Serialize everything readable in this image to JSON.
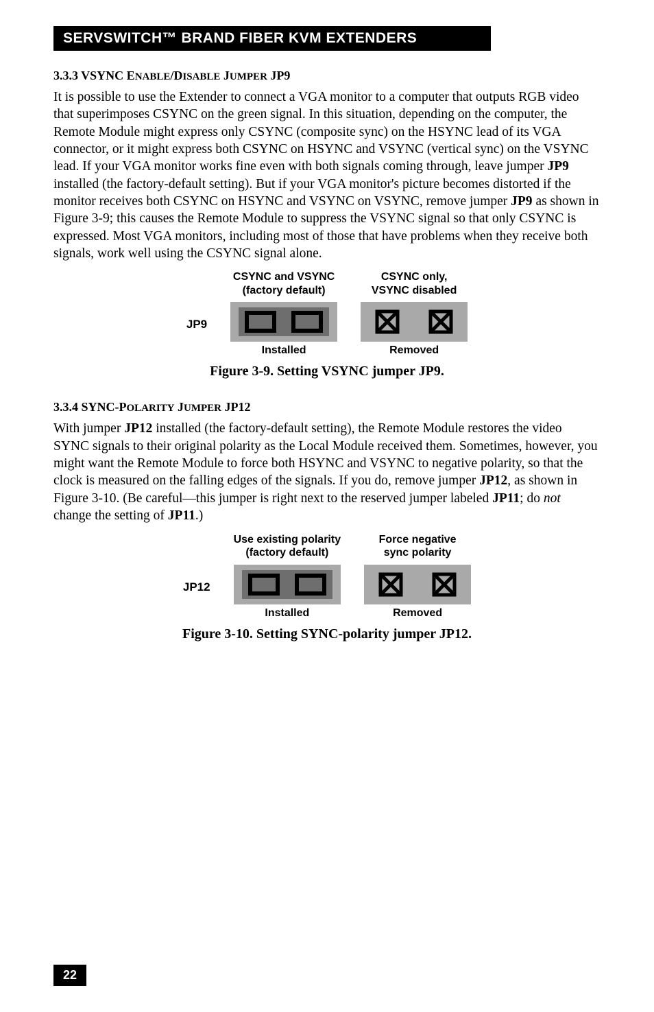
{
  "header": "SERVSWITCH™ BRAND FIBER KVM EXTENDERS",
  "section1": {
    "heading_num": "3.3.3 VSYNC E",
    "heading_mid1": "NABLE",
    "heading_slash": "/D",
    "heading_mid2": "ISABLE",
    "heading_j": " J",
    "heading_mid3": "UMPER",
    "heading_end": " JP9",
    "body": "It is possible to use the Extender to connect a VGA monitor to a computer that outputs RGB video that superimposes CSYNC on the green signal. In this situation, depending on the computer, the Remote Module might express only CSYNC (composite sync) on the HSYNC lead of its VGA connector, or it might express both CSYNC on HSYNC and VSYNC (vertical sync) on the VSYNC lead. If your VGA monitor works fine even with both signals coming through, leave jumper ",
    "jp9a": "JP9",
    "body2": " installed (the factory-default setting). But if your VGA monitor's picture becomes distorted if the monitor receives both CSYNC on HSYNC and VSYNC on VSYNC, remove jumper ",
    "jp9b": "JP9",
    "body3": " as shown in Figure 3-9; this causes the Remote Module to suppress the VSYNC signal so that only CSYNC is expressed. Most VGA monitors, including most of those that have problems when they receive both signals, work well using the CSYNC signal alone."
  },
  "figure1": {
    "jumper_name": "JP9",
    "left_top": "CSYNC and VSYNC\n(factory default)",
    "right_top": "CSYNC only,\nVSYNC disabled",
    "left_bottom": "Installed",
    "right_bottom": "Removed",
    "caption": "Figure 3-9. Setting VSYNC jumper JP9."
  },
  "section2": {
    "heading_num": "3.3.4 SYNC-P",
    "heading_mid1": "OLARITY",
    "heading_j": " J",
    "heading_mid2": "UMPER",
    "heading_end": " JP12",
    "body1": "With jumper ",
    "jp12a": "JP12",
    "body2": " installed (the factory-default setting), the Remote Module restores the video SYNC signals to their original polarity as the Local Module received them. Sometimes, however, you might want the Remote Module to force both HSYNC and VSYNC to negative polarity, so that the clock is measured on the falling edges of the signals. If you do, remove jumper ",
    "jp12b": "JP12",
    "body3": ", as shown in Figure 3-10. (Be careful—this jumper is right next to the reserved jumper labeled ",
    "jp11": "JP11",
    "body4": "; do ",
    "not": "not",
    "body5": " change the setting of ",
    "jp11b": "JP11",
    "body6": ".)"
  },
  "figure2": {
    "jumper_name": "JP12",
    "left_top": "Use existing polarity\n(factory default)",
    "right_top": "Force negative\nsync polarity",
    "left_bottom": "Installed",
    "right_bottom": "Removed",
    "caption": "Figure 3-10. Setting SYNC-polarity jumper JP12."
  },
  "page_number": "22",
  "colors": {
    "dark_gray": "#6e6e6e",
    "light_gray": "#a9a9a9",
    "black": "#000000",
    "white": "#ffffff"
  }
}
